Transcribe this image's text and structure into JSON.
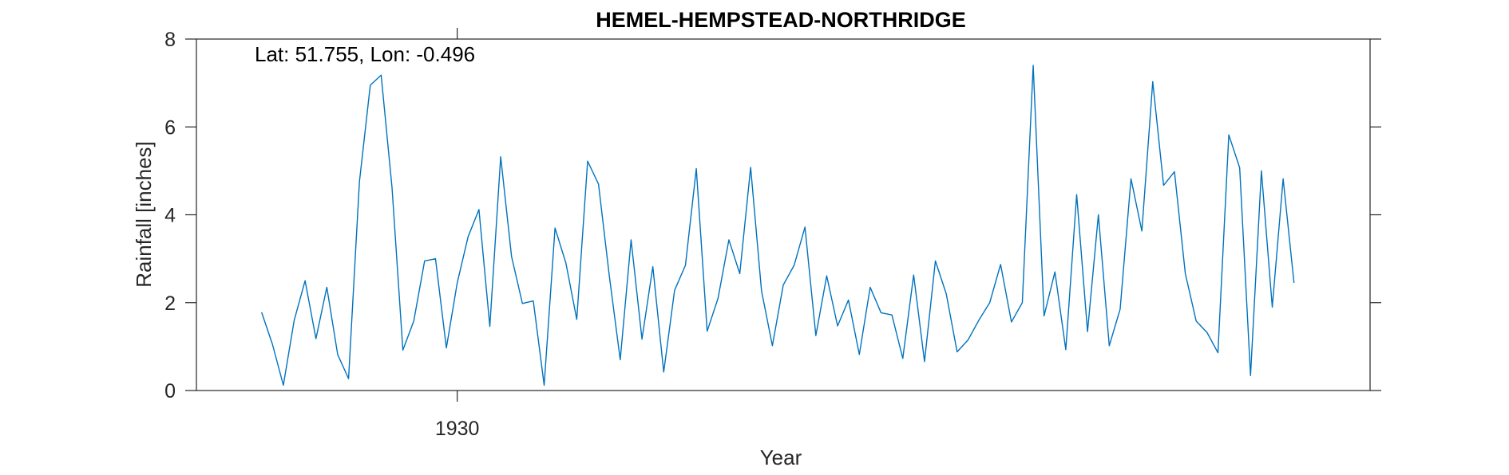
{
  "chart_data": {
    "type": "line",
    "title": "HEMEL-HEMPSTEAD-NORTHRIDGE",
    "xlabel": "Year",
    "ylabel": "Rainfall [inches]",
    "annotation": "Lat: 51.755, Lon: -0.496",
    "xlim": [
      1906,
      2014
    ],
    "ylim": [
      0,
      8
    ],
    "xticks": [
      1930
    ],
    "xtick_labels": [
      "1930"
    ],
    "yticks": [
      0,
      2,
      4,
      6,
      8
    ],
    "ytick_labels": [
      "0",
      "2",
      "4",
      "6",
      "8"
    ],
    "grid": false,
    "line_color": "#0072BD",
    "series": [
      {
        "x": [
          1912,
          1913,
          1914,
          1915,
          1916,
          1917,
          1918,
          1919,
          1920,
          1921,
          1922,
          1923,
          1924,
          1925,
          1926,
          1927,
          1928,
          1929,
          1930,
          1931,
          1932,
          1933,
          1934,
          1935,
          1936,
          1937,
          1938,
          1939,
          1940,
          1941,
          1942,
          1943,
          1944,
          1945,
          1946,
          1947,
          1948,
          1949,
          1950,
          1951,
          1952,
          1953,
          1954,
          1955,
          1956,
          1957,
          1958,
          1959,
          1960,
          1961,
          1962,
          1963,
          1964,
          1965,
          1966,
          1967,
          1968,
          1969,
          1970,
          1971,
          1972,
          1973,
          1974,
          1975,
          1976,
          1977,
          1978,
          1979,
          1980,
          1981,
          1982,
          1983,
          1984,
          1985,
          1986,
          1987,
          1988,
          1989,
          1990,
          1991,
          1992,
          1993,
          1994,
          1995,
          1996,
          1997,
          1998,
          1999,
          2000,
          2001,
          2002,
          2003,
          2004,
          2005,
          2006,
          2007
        ],
        "values": [
          1.78,
          1.05,
          0.12,
          1.6,
          2.5,
          1.18,
          2.35,
          0.82,
          0.27,
          4.75,
          6.95,
          7.18,
          4.62,
          0.92,
          1.58,
          2.95,
          3.0,
          0.97,
          2.45,
          3.5,
          4.12,
          1.46,
          5.32,
          3.05,
          1.98,
          2.04,
          0.12,
          3.7,
          2.9,
          1.62,
          5.22,
          4.7,
          2.6,
          0.7,
          3.43,
          1.17,
          2.82,
          0.42,
          2.28,
          2.85,
          5.05,
          1.35,
          2.1,
          3.43,
          2.66,
          5.08,
          2.27,
          1.02,
          2.4,
          2.85,
          3.72,
          1.25,
          2.61,
          1.47,
          2.06,
          0.82,
          2.35,
          1.77,
          1.72,
          0.73,
          2.63,
          0.66,
          2.95,
          2.2,
          0.88,
          1.15,
          1.6,
          2.0,
          2.87,
          1.56,
          2.0,
          7.4,
          1.7,
          2.7,
          0.93,
          4.46,
          1.34,
          4.0,
          1.02,
          1.85,
          4.82,
          3.63,
          7.03,
          4.67,
          4.98,
          2.66,
          1.58,
          1.32,
          0.86,
          5.82,
          5.07,
          0.34,
          5.0,
          1.9,
          4.82,
          2.45
        ]
      }
    ]
  }
}
